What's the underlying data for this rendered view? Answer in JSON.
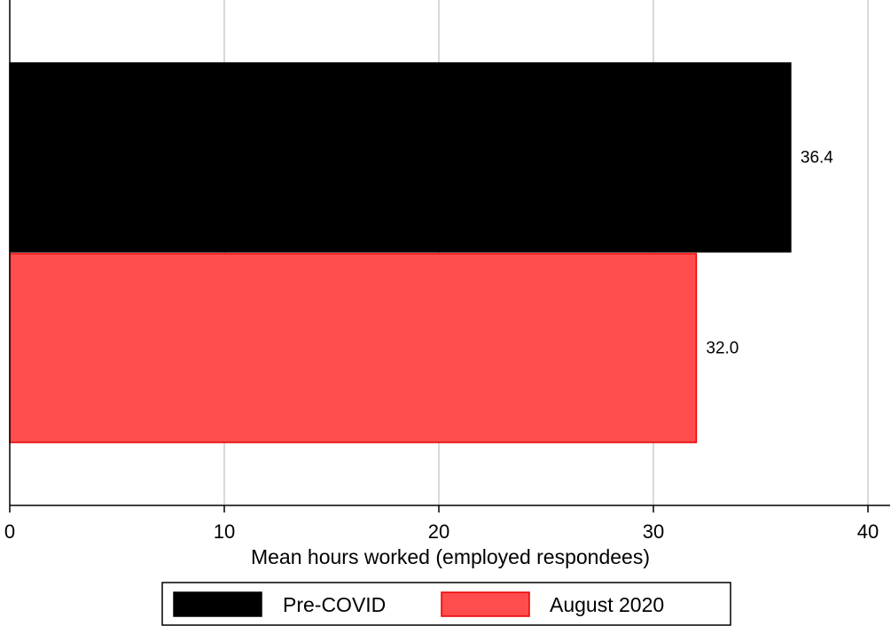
{
  "chart_data": {
    "type": "bar",
    "orientation": "horizontal",
    "series": [
      {
        "name": "Pre-COVID",
        "value": 36.4,
        "label": "36.4",
        "color": "#000000",
        "border": "#000000"
      },
      {
        "name": "August 2020",
        "value": 32.0,
        "label": "32.0",
        "color": "#ff4d4d",
        "border": "#e60000"
      }
    ],
    "xlabel": "Mean hours worked (employed respondees)",
    "xlim": [
      0,
      40
    ],
    "xticks": [
      0,
      10,
      20,
      30,
      40
    ],
    "xtick_labels": [
      "0",
      "10",
      "20",
      "30",
      "40"
    ],
    "grid": true,
    "grid_color": "#d9d9d9",
    "legend_position": "bottom-center"
  }
}
